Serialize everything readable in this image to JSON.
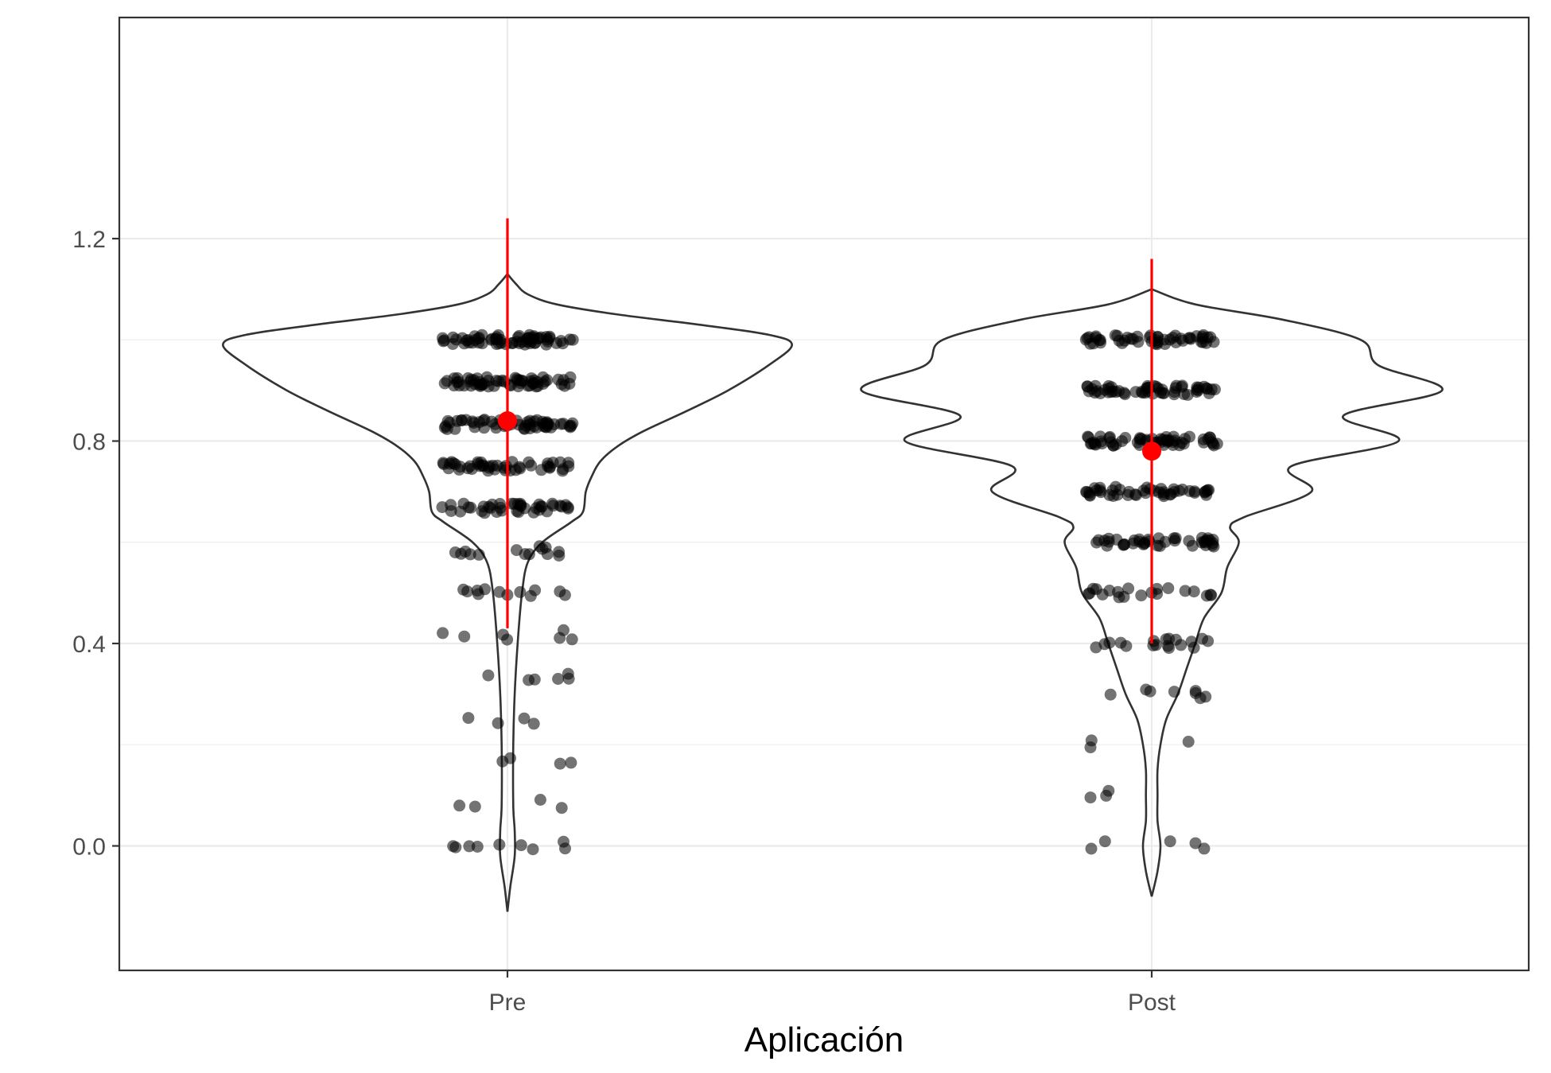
{
  "chart_data": {
    "type": "violin",
    "title": "",
    "xlabel": "Aplicación",
    "ylabel": "",
    "categories": [
      "Pre",
      "Post"
    ],
    "ylim": [
      -0.2,
      1.31
    ],
    "y_ticks": [
      0.0,
      0.4,
      0.8,
      1.2
    ],
    "y_tick_labels": [
      "0.0",
      "0.4",
      "0.8",
      "1.2"
    ],
    "grid": true,
    "legend": "none",
    "colors": {
      "outline": "#333333",
      "points": "#000000",
      "summary": "#ff0000",
      "grid": "#ebebeb",
      "panel_border": "#333333"
    },
    "series": [
      {
        "category": "Pre",
        "mean": 0.84,
        "range_low": 0.43,
        "range_high": 1.24,
        "violin_min": -0.13,
        "violin_max": 1.13,
        "density_profile": [
          [
            -0.13,
            0.0
          ],
          [
            -0.08,
            0.01
          ],
          [
            -0.02,
            0.025
          ],
          [
            0.03,
            0.025
          ],
          [
            0.08,
            0.02
          ],
          [
            0.2,
            0.02
          ],
          [
            0.3,
            0.025
          ],
          [
            0.4,
            0.035
          ],
          [
            0.5,
            0.05
          ],
          [
            0.56,
            0.07
          ],
          [
            0.6,
            0.12
          ],
          [
            0.64,
            0.22
          ],
          [
            0.66,
            0.26
          ],
          [
            0.7,
            0.27
          ],
          [
            0.73,
            0.29
          ],
          [
            0.76,
            0.32
          ],
          [
            0.79,
            0.38
          ],
          [
            0.82,
            0.47
          ],
          [
            0.86,
            0.62
          ],
          [
            0.9,
            0.76
          ],
          [
            0.95,
            0.9
          ],
          [
            0.99,
            0.98
          ],
          [
            1.01,
            0.9
          ],
          [
            1.03,
            0.66
          ],
          [
            1.05,
            0.38
          ],
          [
            1.07,
            0.17
          ],
          [
            1.09,
            0.07
          ],
          [
            1.11,
            0.03
          ],
          [
            1.13,
            0.0
          ]
        ],
        "point_levels": [
          {
            "y": 1.0,
            "n": 65
          },
          {
            "y": 0.917,
            "n": 60
          },
          {
            "y": 0.833,
            "n": 55
          },
          {
            "y": 0.75,
            "n": 45
          },
          {
            "y": 0.667,
            "n": 40
          },
          {
            "y": 0.583,
            "n": 14
          },
          {
            "y": 0.5,
            "n": 12
          },
          {
            "y": 0.417,
            "n": 7
          },
          {
            "y": 0.333,
            "n": 6
          },
          {
            "y": 0.25,
            "n": 4
          },
          {
            "y": 0.167,
            "n": 4
          },
          {
            "y": 0.083,
            "n": 4
          },
          {
            "y": 0.0,
            "n": 9
          }
        ]
      },
      {
        "category": "Post",
        "mean": 0.78,
        "range_low": 0.4,
        "range_high": 1.16,
        "violin_min": -0.1,
        "violin_max": 1.1,
        "density_profile": [
          [
            -0.1,
            0.0
          ],
          [
            -0.05,
            0.02
          ],
          [
            0.0,
            0.03
          ],
          [
            0.05,
            0.02
          ],
          [
            0.1,
            0.02
          ],
          [
            0.15,
            0.02
          ],
          [
            0.2,
            0.03
          ],
          [
            0.25,
            0.05
          ],
          [
            0.3,
            0.09
          ],
          [
            0.35,
            0.12
          ],
          [
            0.4,
            0.15
          ],
          [
            0.45,
            0.18
          ],
          [
            0.5,
            0.24
          ],
          [
            0.55,
            0.26
          ],
          [
            0.6,
            0.3
          ],
          [
            0.63,
            0.27
          ],
          [
            0.65,
            0.32
          ],
          [
            0.7,
            0.55
          ],
          [
            0.75,
            0.48
          ],
          [
            0.8,
            0.85
          ],
          [
            0.85,
            0.66
          ],
          [
            0.9,
            1.0
          ],
          [
            0.95,
            0.78
          ],
          [
            1.0,
            0.72
          ],
          [
            1.04,
            0.45
          ],
          [
            1.07,
            0.15
          ],
          [
            1.1,
            0.0
          ]
        ],
        "point_levels": [
          {
            "y": 1.0,
            "n": 50
          },
          {
            "y": 0.9,
            "n": 55
          },
          {
            "y": 0.8,
            "n": 55
          },
          {
            "y": 0.7,
            "n": 45
          },
          {
            "y": 0.6,
            "n": 40
          },
          {
            "y": 0.5,
            "n": 20
          },
          {
            "y": 0.4,
            "n": 18
          },
          {
            "y": 0.3,
            "n": 8
          },
          {
            "y": 0.2,
            "n": 3
          },
          {
            "y": 0.1,
            "n": 3
          },
          {
            "y": 0.0,
            "n": 5
          }
        ]
      }
    ]
  }
}
